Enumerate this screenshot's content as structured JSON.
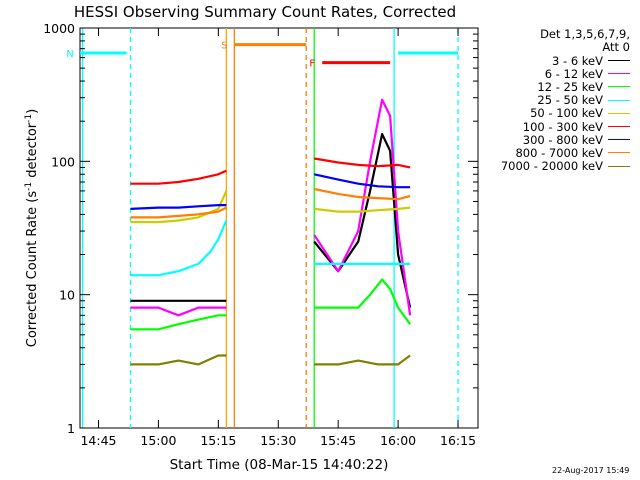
{
  "chart_data": {
    "type": "line",
    "title": "HESSI Observing Summary Count Rates, Corrected",
    "xlabel": "Start Time (08-Mar-15 14:40:22)",
    "ylabel_main": "Corrected Count Rate (s",
    "ylabel_sup1": "-1",
    "ylabel_mid": " detector",
    "ylabel_sup2": "-1",
    "ylabel_end": ")",
    "y_scale": "log",
    "ylim": [
      1,
      1000
    ],
    "xlim": [
      "14:40:22",
      "16:20"
    ],
    "x_ticks": [
      "14:45",
      "15:00",
      "15:15",
      "15:30",
      "15:45",
      "16:00",
      "16:15"
    ],
    "y_ticks": [
      "1",
      "10",
      "100",
      "1000"
    ],
    "grid": false,
    "legend_position": "right",
    "legend_header": [
      "Det 1,3,5,6,7,9,",
      "Att 0"
    ],
    "timestamp": "22-Aug-2017 15:49",
    "flags": [
      {
        "label": "N",
        "color": "#00ffff",
        "segments": [
          [
            "14:40:22",
            "14:52"
          ],
          [
            "16:00",
            "16:15"
          ]
        ],
        "level": 650,
        "markers": [
          "14:52",
          "16:15"
        ]
      },
      {
        "label": "S",
        "color": "#ff7f00",
        "segments": [
          [
            "15:19",
            "15:37"
          ]
        ],
        "level": 750,
        "markers": [
          "15:37"
        ]
      },
      {
        "label": "F",
        "color": "#ff0000",
        "segments": [
          [
            "15:41",
            "15:58"
          ]
        ],
        "level": 550,
        "markers": []
      }
    ],
    "event_lines": [
      {
        "time": "14:41",
        "color": "#00ffff",
        "style": "solid"
      },
      {
        "time": "14:53",
        "color": "#00ffff",
        "style": "dashed"
      },
      {
        "time": "15:17",
        "color": "#ffa500",
        "style": "solid"
      },
      {
        "time": "15:19",
        "color": "#ff7f00",
        "style": "solid"
      },
      {
        "time": "15:37",
        "color": "#ff7f00",
        "style": "dashed"
      },
      {
        "time": "15:39",
        "color": "#00ff00",
        "style": "solid"
      },
      {
        "time": "15:59",
        "color": "#00ffff",
        "style": "solid"
      },
      {
        "time": "16:15",
        "color": "#00ffff",
        "style": "dashed"
      }
    ],
    "series": [
      {
        "name": "3 - 6 keV",
        "color": "#000000",
        "segments": [
          {
            "x": [
              "14:53",
              "15:00",
              "15:05",
              "15:10",
              "15:15",
              "15:17"
            ],
            "y": [
              9,
              9,
              9,
              9,
              9,
              9
            ]
          },
          {
            "x": [
              "15:39",
              "15:45",
              "15:50",
              "15:53",
              "15:56",
              "15:58",
              "16:00",
              "16:03"
            ],
            "y": [
              25,
              15,
              25,
              60,
              160,
              120,
              20,
              8
            ]
          }
        ]
      },
      {
        "name": "6 - 12 keV",
        "color": "#ff00ff",
        "segments": [
          {
            "x": [
              "14:53",
              "15:00",
              "15:05",
              "15:10",
              "15:15",
              "15:17"
            ],
            "y": [
              8,
              8,
              7,
              8,
              8,
              8
            ]
          },
          {
            "x": [
              "15:39",
              "15:45",
              "15:50",
              "15:53",
              "15:56",
              "15:58",
              "16:00",
              "16:03"
            ],
            "y": [
              28,
              15,
              30,
              100,
              290,
              220,
              30,
              7
            ]
          }
        ]
      },
      {
        "name": "12 - 25 keV",
        "color": "#00ff00",
        "segments": [
          {
            "x": [
              "14:53",
              "15:00",
              "15:05",
              "15:10",
              "15:15",
              "15:17"
            ],
            "y": [
              5.5,
              5.5,
              6,
              6.5,
              7,
              7
            ]
          },
          {
            "x": [
              "15:39",
              "15:45",
              "15:50",
              "15:53",
              "15:56",
              "15:58",
              "16:00",
              "16:03"
            ],
            "y": [
              8,
              8,
              8,
              10,
              13,
              11,
              8,
              6
            ]
          }
        ]
      },
      {
        "name": "25 - 50 keV",
        "color": "#00ffff",
        "segments": [
          {
            "x": [
              "14:53",
              "15:00",
              "15:05",
              "15:10",
              "15:13",
              "15:15",
              "15:17"
            ],
            "y": [
              14,
              14,
              15,
              17,
              21,
              26,
              36
            ]
          },
          {
            "x": [
              "15:39",
              "15:45",
              "15:50",
              "15:55",
              "16:00",
              "16:03"
            ],
            "y": [
              17,
              17,
              17,
              17,
              17,
              17
            ]
          }
        ]
      },
      {
        "name": "50 - 100 keV",
        "color": "#cccc00",
        "segments": [
          {
            "x": [
              "14:53",
              "15:00",
              "15:05",
              "15:10",
              "15:15",
              "15:17"
            ],
            "y": [
              35,
              35,
              36,
              38,
              44,
              60
            ]
          },
          {
            "x": [
              "15:39",
              "15:45",
              "15:50",
              "15:55",
              "16:00",
              "16:03"
            ],
            "y": [
              44,
              42,
              42,
              43,
              44,
              45
            ]
          }
        ]
      },
      {
        "name": "100 - 300 keV",
        "color": "#ff0000",
        "segments": [
          {
            "x": [
              "14:53",
              "15:00",
              "15:05",
              "15:10",
              "15:15",
              "15:17"
            ],
            "y": [
              68,
              68,
              70,
              74,
              80,
              85
            ]
          },
          {
            "x": [
              "15:39",
              "15:45",
              "15:50",
              "15:55",
              "16:00",
              "16:03"
            ],
            "y": [
              105,
              98,
              94,
              92,
              94,
              90
            ]
          }
        ]
      },
      {
        "name": "300 - 800 keV",
        "color": "#0000ff",
        "segments": [
          {
            "x": [
              "14:53",
              "15:00",
              "15:05",
              "15:10",
              "15:15",
              "15:17"
            ],
            "y": [
              44,
              45,
              45,
              46,
              47,
              47
            ]
          },
          {
            "x": [
              "15:39",
              "15:45",
              "15:50",
              "15:55",
              "16:00",
              "16:03"
            ],
            "y": [
              80,
              73,
              68,
              65,
              64,
              64
            ]
          }
        ]
      },
      {
        "name": "800 - 7000 keV",
        "color": "#ff7f00",
        "segments": [
          {
            "x": [
              "14:53",
              "15:00",
              "15:05",
              "15:10",
              "15:15",
              "15:17"
            ],
            "y": [
              38,
              38,
              39,
              40,
              42,
              45
            ]
          },
          {
            "x": [
              "15:39",
              "15:45",
              "15:50",
              "15:55",
              "16:00",
              "16:03"
            ],
            "y": [
              62,
              57,
              54,
              53,
              52,
              55
            ]
          }
        ]
      },
      {
        "name": "7000 - 20000 keV",
        "color": "#808000",
        "segments": [
          {
            "x": [
              "14:53",
              "15:00",
              "15:05",
              "15:10",
              "15:15",
              "15:17"
            ],
            "y": [
              3,
              3,
              3.2,
              3,
              3.5,
              3.5
            ]
          },
          {
            "x": [
              "15:39",
              "15:45",
              "15:50",
              "15:55",
              "16:00",
              "16:03"
            ],
            "y": [
              3,
              3,
              3.2,
              3,
              3,
              3.5
            ]
          }
        ]
      }
    ]
  }
}
